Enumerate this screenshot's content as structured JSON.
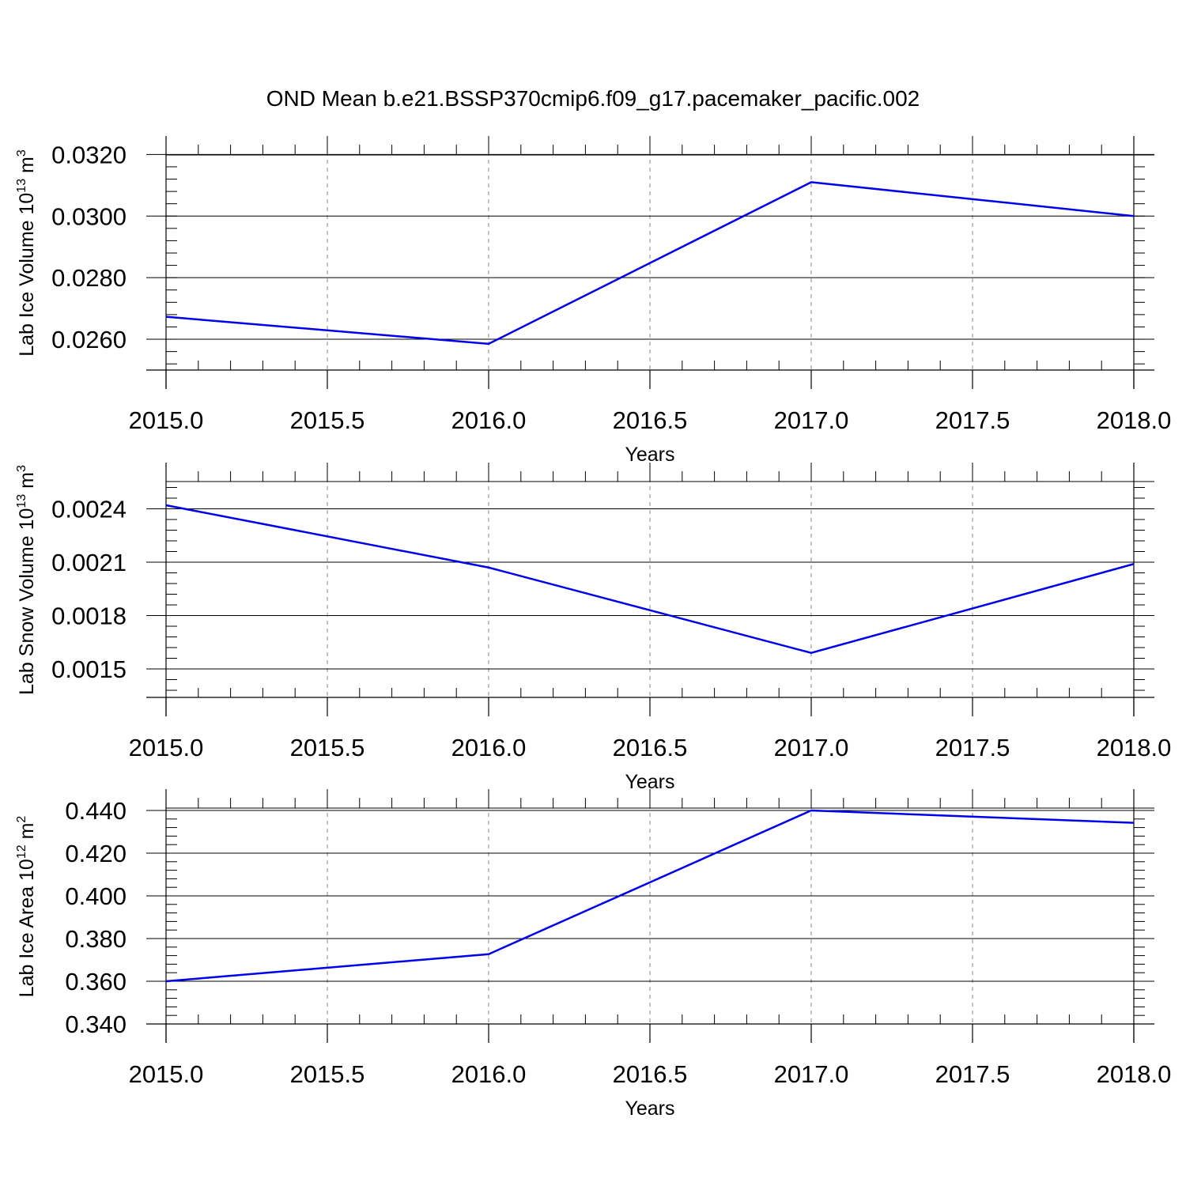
{
  "figure": {
    "title": "OND Mean b.e21.BSSP370cmip6.f09_g17.pacemaker_pacific.002",
    "line_color": "#0000ee",
    "grid_color": "#888888"
  },
  "chart_data": [
    {
      "type": "line",
      "xlabel": "Years",
      "ylabel": "Lab Ice Volume 10",
      "ylabel_sup": "13",
      "ylabel_unit": "m",
      "ylabel_unit_sup": "3",
      "xlim": [
        2015.0,
        2018.0
      ],
      "ylim": [
        0.025,
        0.0326
      ],
      "x_ticks": [
        "2015.0",
        "2015.5",
        "2016.0",
        "2016.5",
        "2017.0",
        "2017.5",
        "2018.0"
      ],
      "y_ticks": [
        "0.0260",
        "0.0280",
        "0.0300",
        "0.0320"
      ],
      "y_major_values": [
        0.026,
        0.028,
        0.03,
        0.032
      ],
      "y_minor_step": 0.0004,
      "x": [
        2015,
        2016,
        2017,
        2018
      ],
      "series": [
        {
          "values": [
            0.02673,
            0.02585,
            0.0311,
            0.03
          ]
        }
      ]
    },
    {
      "type": "line",
      "xlabel": "Years",
      "ylabel": "Lab Snow Volume 10",
      "ylabel_sup": "13",
      "ylabel_unit": "m",
      "ylabel_unit_sup": "3",
      "xlim": [
        2015.0,
        2018.0
      ],
      "ylim": [
        0.00134,
        0.00266
      ],
      "x_ticks": [
        "2015.0",
        "2015.5",
        "2016.0",
        "2016.5",
        "2017.0",
        "2017.5",
        "2018.0"
      ],
      "y_ticks": [
        "0.0015",
        "0.0018",
        "0.0021",
        "0.0024"
      ],
      "y_major_values": [
        0.0015,
        0.0018,
        0.0021,
        0.0024
      ],
      "y_minor_step": 6e-05,
      "x": [
        2015,
        2016,
        2017,
        2018
      ],
      "series": [
        {
          "values": [
            0.00242,
            0.00207,
            0.00159,
            0.00209
          ]
        }
      ]
    },
    {
      "type": "line",
      "xlabel": "Years",
      "ylabel": "Lab Ice Area 10",
      "ylabel_sup": "12",
      "ylabel_unit": "m",
      "ylabel_unit_sup": "2",
      "xlim": [
        2015.0,
        2018.0
      ],
      "ylim": [
        0.34,
        0.45
      ],
      "x_ticks": [
        "2015.0",
        "2015.5",
        "2016.0",
        "2016.5",
        "2017.0",
        "2017.5",
        "2018.0"
      ],
      "y_ticks": [
        "0.340",
        "0.360",
        "0.380",
        "0.400",
        "0.420",
        "0.440"
      ],
      "y_major_values": [
        0.34,
        0.36,
        0.38,
        0.4,
        0.42,
        0.44
      ],
      "y_minor_step": 0.004,
      "x": [
        2015,
        2016,
        2017,
        2018
      ],
      "series": [
        {
          "values": [
            0.36,
            0.3727,
            0.44,
            0.4342
          ]
        }
      ]
    }
  ]
}
